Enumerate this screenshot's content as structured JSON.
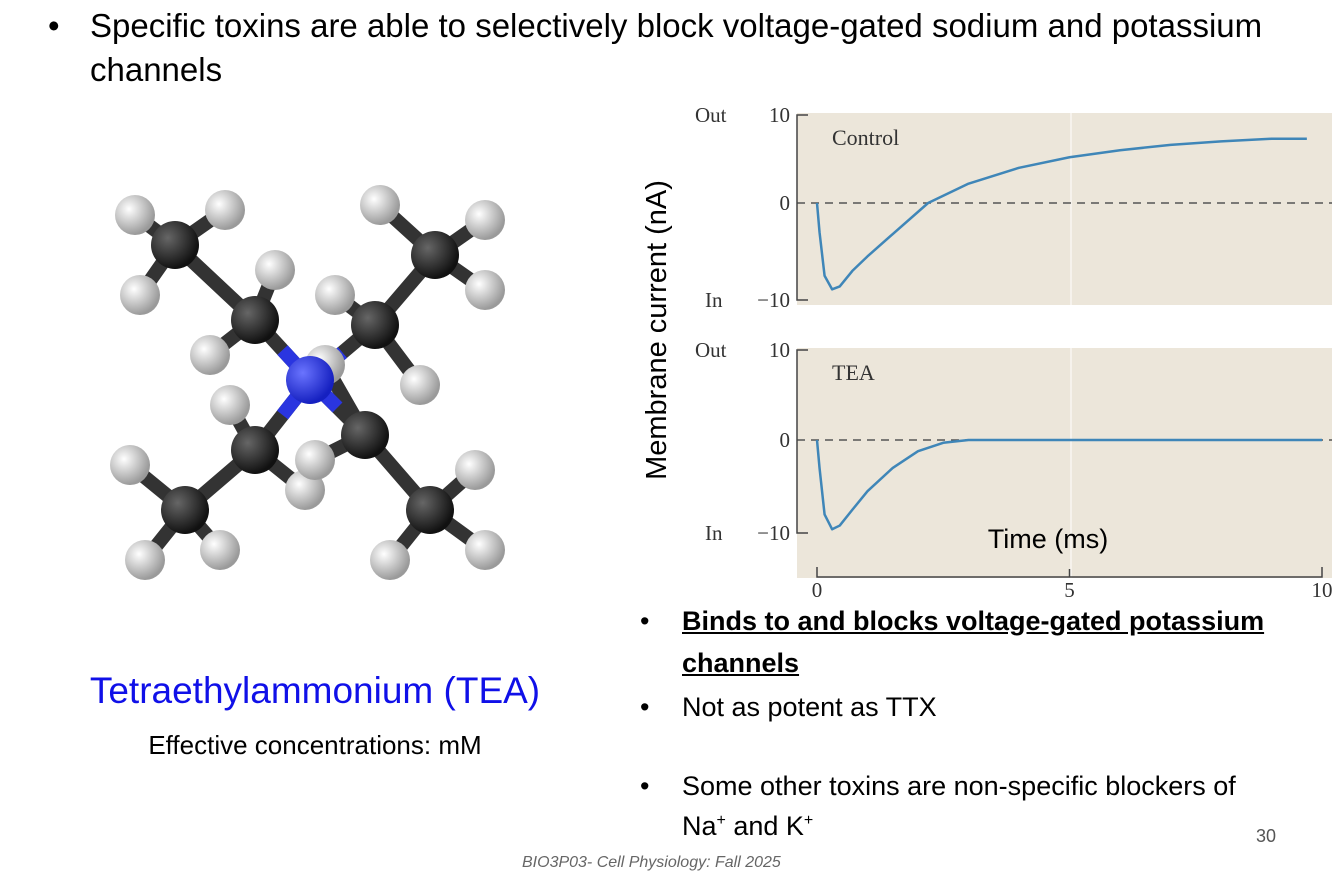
{
  "title": {
    "bullet": "•",
    "text": "Specific toxins are able to selectively block voltage-gated sodium and potassium channels"
  },
  "molecule": {
    "name": "Tetraethylammonium (TEA)",
    "concentration": "Effective concentrations: mM",
    "colors": {
      "name": "#1010e8",
      "nitrogen": "#2a35e0",
      "carbon": "#2a2a2a",
      "hydrogen": "#e8e8e8"
    }
  },
  "bullets": [
    {
      "text": "Binds to and blocks voltage-gated potassium channels",
      "style": "bold-underline"
    },
    {
      "text": "Not as potent as TTX"
    },
    {
      "text_prefix": "Some other toxins are non-specific blockers of",
      "line2_a": "Na",
      "sup_a": "+",
      "line2_mid": " and K",
      "sup_b": "+"
    }
  ],
  "footer": "BIO3P03- Cell Physiology: Fall 2025",
  "page_number": "30",
  "chart_data": [
    {
      "type": "line",
      "panel_label": "Control",
      "ylabel": "Membrane current (nA)",
      "xlabel": "Time (ms)",
      "y_outer_labels": {
        "top": "Out",
        "bottom": "In"
      },
      "yticks": [
        "10",
        "0",
        "−10"
      ],
      "ylim": [
        -10,
        10
      ],
      "xlim": [
        0,
        10
      ],
      "zero_line": "dashed",
      "color": "#3f86b8",
      "background": "#ece6da",
      "x": [
        0,
        0.05,
        0.15,
        0.3,
        0.45,
        0.7,
        1.0,
        1.5,
        2.2,
        3,
        4,
        5,
        6,
        7,
        8,
        9,
        9.7
      ],
      "y": [
        0,
        -3,
        -7.5,
        -8.9,
        -8.6,
        -7,
        -5.5,
        -3.2,
        0,
        2.2,
        4,
        5.2,
        6,
        6.6,
        7,
        7.3,
        7.3
      ]
    },
    {
      "type": "line",
      "panel_label": "TEA",
      "yticks": [
        "10",
        "0",
        "−10"
      ],
      "y_outer_labels": {
        "top": "Out",
        "bottom": "In"
      },
      "ylim": [
        -10,
        10
      ],
      "xlim": [
        0,
        10
      ],
      "xticks": [
        "0",
        "5",
        "10"
      ],
      "zero_line": "dashed",
      "color": "#3f86b8",
      "background": "#ece6da",
      "x": [
        0,
        0.05,
        0.15,
        0.3,
        0.45,
        0.7,
        1.0,
        1.5,
        2.0,
        2.5,
        3,
        5,
        10
      ],
      "y": [
        0,
        -3,
        -8,
        -9.6,
        -9.2,
        -7.5,
        -5.5,
        -3,
        -1.2,
        -0.3,
        0,
        0,
        0
      ]
    }
  ]
}
